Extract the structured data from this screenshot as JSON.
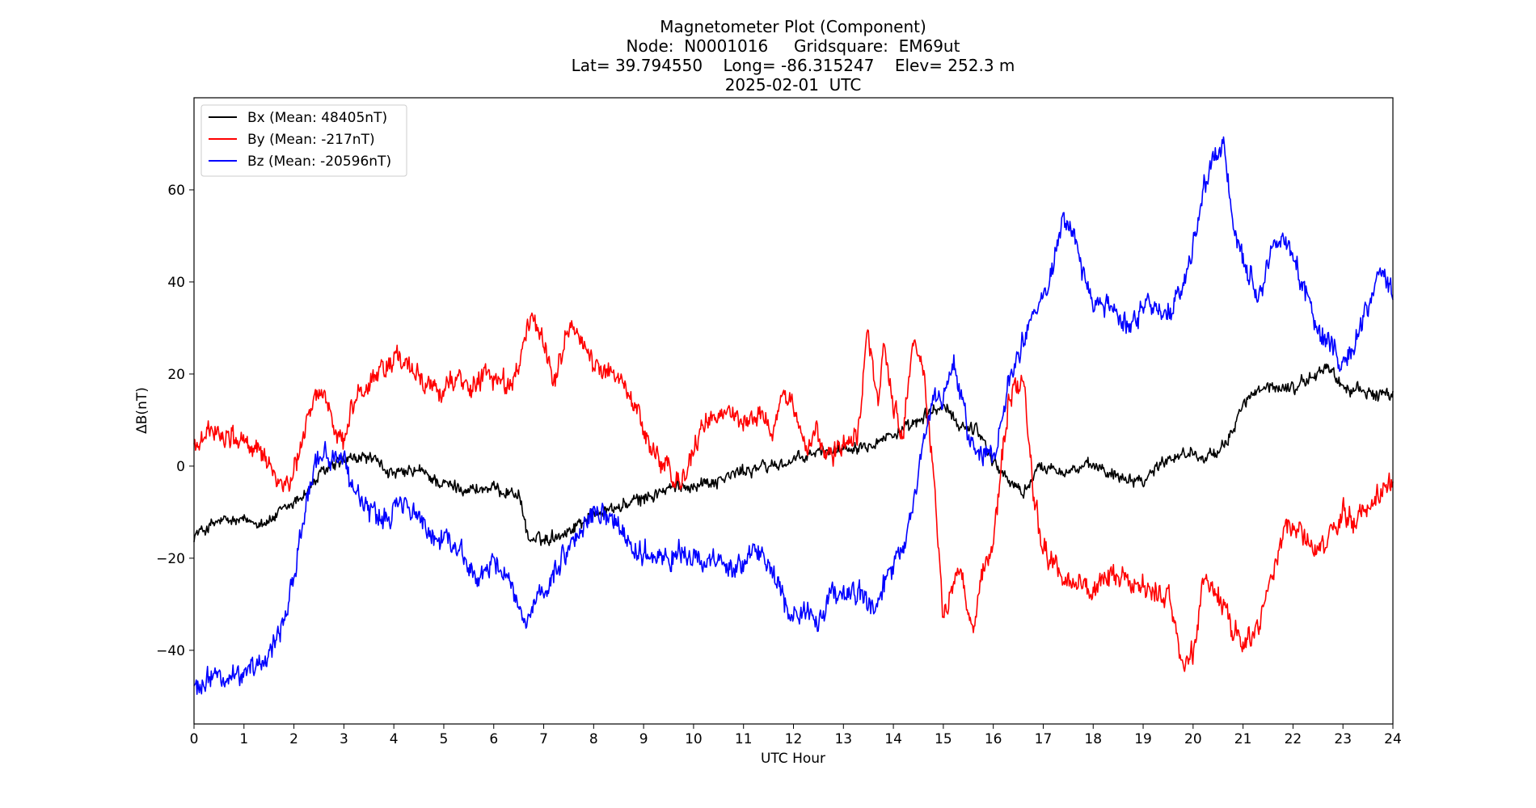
{
  "chart_data": {
    "type": "line",
    "title_lines": [
      "Magnetometer Plot (Component)",
      "Node:  N0001016     Gridsquare:  EM69ut",
      "Lat= 39.794550    Long= -86.315247    Elev= 252.3 m",
      "2025-02-01  UTC"
    ],
    "xlabel": "UTC Hour",
    "ylabel": "ΔB(nT)",
    "xlim": [
      0,
      24
    ],
    "ylim": [
      -56,
      80
    ],
    "xticks": [
      0,
      1,
      2,
      3,
      4,
      5,
      6,
      7,
      8,
      9,
      10,
      11,
      12,
      13,
      14,
      15,
      16,
      17,
      18,
      19,
      20,
      21,
      22,
      23,
      24
    ],
    "yticks": [
      -40,
      -20,
      0,
      20,
      40,
      60
    ],
    "ytick_labels": [
      "−40",
      "−20",
      "0",
      "20",
      "40",
      "60"
    ],
    "legend_position": "top-left",
    "series": [
      {
        "name": "Bx (Mean: 48405nT)",
        "color": "#000000",
        "noise": 1.2,
        "points": [
          [
            0,
            -15
          ],
          [
            0.5,
            -12
          ],
          [
            1,
            -12
          ],
          [
            1.5,
            -12
          ],
          [
            2,
            -8
          ],
          [
            2.3,
            -5
          ],
          [
            2.6,
            -1
          ],
          [
            3,
            1
          ],
          [
            3.5,
            2
          ],
          [
            4,
            -2
          ],
          [
            4.5,
            -1
          ],
          [
            5,
            -4
          ],
          [
            5.5,
            -5
          ],
          [
            6,
            -5
          ],
          [
            6.5,
            -6
          ],
          [
            6.7,
            -16
          ],
          [
            7,
            -16
          ],
          [
            7.5,
            -14
          ],
          [
            8,
            -10
          ],
          [
            8.5,
            -9
          ],
          [
            9,
            -7
          ],
          [
            9.5,
            -5
          ],
          [
            10,
            -4
          ],
          [
            10.5,
            -3
          ],
          [
            11,
            -1
          ],
          [
            11.5,
            0
          ],
          [
            12,
            1
          ],
          [
            12.5,
            3
          ],
          [
            13,
            4
          ],
          [
            13.5,
            5
          ],
          [
            14,
            7
          ],
          [
            14.3,
            8
          ],
          [
            14.8,
            12
          ],
          [
            15,
            13
          ],
          [
            15.3,
            9
          ],
          [
            15.7,
            8
          ],
          [
            16,
            1
          ],
          [
            16.3,
            -3
          ],
          [
            16.6,
            -6
          ],
          [
            16.8,
            -2
          ],
          [
            17,
            0
          ],
          [
            17.5,
            -1
          ],
          [
            18,
            0
          ],
          [
            18.5,
            -2
          ],
          [
            19,
            -3
          ],
          [
            19.5,
            2
          ],
          [
            20,
            3
          ],
          [
            20.5,
            2
          ],
          [
            20.8,
            8
          ],
          [
            21,
            14
          ],
          [
            21.5,
            17
          ],
          [
            22,
            17
          ],
          [
            22.5,
            20
          ],
          [
            22.7,
            22
          ],
          [
            23,
            17
          ],
          [
            23.5,
            16
          ],
          [
            24,
            15
          ]
        ]
      },
      {
        "name": "By (Mean: -217nT)",
        "color": "#ff0000",
        "noise": 2.2,
        "points": [
          [
            0,
            4
          ],
          [
            0.3,
            8
          ],
          [
            0.7,
            7
          ],
          [
            1,
            5
          ],
          [
            1.5,
            1
          ],
          [
            1.9,
            -6
          ],
          [
            2.1,
            3
          ],
          [
            2.4,
            15
          ],
          [
            2.6,
            16
          ],
          [
            2.8,
            10
          ],
          [
            3,
            5
          ],
          [
            3.2,
            14
          ],
          [
            3.5,
            18
          ],
          [
            4,
            24
          ],
          [
            4.3,
            21
          ],
          [
            4.6,
            18
          ],
          [
            5,
            17
          ],
          [
            5.2,
            19
          ],
          [
            5.5,
            17
          ],
          [
            5.8,
            20
          ],
          [
            6,
            19
          ],
          [
            6.3,
            17
          ],
          [
            6.5,
            22
          ],
          [
            6.7,
            31
          ],
          [
            7,
            28
          ],
          [
            7.2,
            18
          ],
          [
            7.5,
            31
          ],
          [
            7.8,
            27
          ],
          [
            8,
            21
          ],
          [
            8.4,
            21
          ],
          [
            8.8,
            14
          ],
          [
            9.1,
            5
          ],
          [
            9.4,
            0
          ],
          [
            9.7,
            -4
          ],
          [
            10,
            3
          ],
          [
            10.3,
            10
          ],
          [
            10.7,
            12
          ],
          [
            11,
            9
          ],
          [
            11.3,
            12
          ],
          [
            11.6,
            7
          ],
          [
            11.8,
            17
          ],
          [
            12,
            13
          ],
          [
            12.2,
            4
          ],
          [
            12.5,
            7
          ],
          [
            12.8,
            2
          ],
          [
            13,
            5
          ],
          [
            13.3,
            9
          ],
          [
            13.5,
            30
          ],
          [
            13.7,
            12
          ],
          [
            13.8,
            27
          ],
          [
            14,
            13
          ],
          [
            14.2,
            8
          ],
          [
            14.4,
            27
          ],
          [
            14.6,
            22
          ],
          [
            14.8,
            -2
          ],
          [
            15,
            -33
          ],
          [
            15.3,
            -22
          ],
          [
            15.6,
            -35
          ],
          [
            15.8,
            -22
          ],
          [
            16,
            -18
          ],
          [
            16.3,
            14
          ],
          [
            16.6,
            19
          ],
          [
            16.8,
            -5
          ],
          [
            17,
            -18
          ],
          [
            17.5,
            -25
          ],
          [
            18,
            -27
          ],
          [
            18.5,
            -24
          ],
          [
            19,
            -27
          ],
          [
            19.5,
            -28
          ],
          [
            19.8,
            -44
          ],
          [
            20,
            -40
          ],
          [
            20.2,
            -25
          ],
          [
            20.5,
            -28
          ],
          [
            20.7,
            -33
          ],
          [
            21,
            -39
          ],
          [
            21.3,
            -35
          ],
          [
            21.6,
            -22
          ],
          [
            21.9,
            -12
          ],
          [
            22.2,
            -15
          ],
          [
            22.5,
            -19
          ],
          [
            22.8,
            -15
          ],
          [
            23,
            -10
          ],
          [
            23.3,
            -12
          ],
          [
            23.6,
            -7
          ],
          [
            24,
            -3
          ]
        ]
      },
      {
        "name": "Bz (Mean: -20596nT)",
        "color": "#0000ff",
        "noise": 2.2,
        "points": [
          [
            0,
            -48
          ],
          [
            0.5,
            -45
          ],
          [
            1,
            -46
          ],
          [
            1.5,
            -40
          ],
          [
            1.8,
            -33
          ],
          [
            2,
            -24
          ],
          [
            2.2,
            -10
          ],
          [
            2.4,
            0
          ],
          [
            2.6,
            3
          ],
          [
            3,
            1
          ],
          [
            3.2,
            -5
          ],
          [
            3.5,
            -10
          ],
          [
            3.8,
            -11
          ],
          [
            4.2,
            -8
          ],
          [
            4.6,
            -13
          ],
          [
            5,
            -16
          ],
          [
            5.3,
            -17
          ],
          [
            5.7,
            -25
          ],
          [
            6,
            -21
          ],
          [
            6.3,
            -23
          ],
          [
            6.6,
            -35
          ],
          [
            6.8,
            -32
          ],
          [
            7,
            -28
          ],
          [
            7.3,
            -22
          ],
          [
            7.6,
            -16
          ],
          [
            8,
            -10
          ],
          [
            8.4,
            -12
          ],
          [
            8.8,
            -18
          ],
          [
            9.2,
            -20
          ],
          [
            9.6,
            -19
          ],
          [
            10,
            -20
          ],
          [
            10.5,
            -21
          ],
          [
            11,
            -22
          ],
          [
            11.3,
            -18
          ],
          [
            11.6,
            -23
          ],
          [
            11.9,
            -33
          ],
          [
            12.2,
            -31
          ],
          [
            12.5,
            -34
          ],
          [
            12.8,
            -27
          ],
          [
            13.2,
            -27
          ],
          [
            13.6,
            -32
          ],
          [
            14,
            -22
          ],
          [
            14.3,
            -15
          ],
          [
            14.6,
            5
          ],
          [
            14.8,
            14
          ],
          [
            15,
            15
          ],
          [
            15.2,
            22
          ],
          [
            15.4,
            12
          ],
          [
            15.6,
            4
          ],
          [
            16,
            2
          ],
          [
            16.3,
            18
          ],
          [
            16.6,
            28
          ],
          [
            17,
            38
          ],
          [
            17.2,
            43
          ],
          [
            17.4,
            55
          ],
          [
            17.6,
            50
          ],
          [
            17.8,
            42
          ],
          [
            18,
            35
          ],
          [
            18.4,
            34
          ],
          [
            18.8,
            30
          ],
          [
            19.1,
            37
          ],
          [
            19.4,
            31
          ],
          [
            19.8,
            38
          ],
          [
            20,
            48
          ],
          [
            20.2,
            60
          ],
          [
            20.4,
            66
          ],
          [
            20.6,
            70
          ],
          [
            20.8,
            55
          ],
          [
            21,
            45
          ],
          [
            21.3,
            38
          ],
          [
            21.6,
            48
          ],
          [
            21.9,
            48
          ],
          [
            22.2,
            40
          ],
          [
            22.5,
            29
          ],
          [
            22.8,
            26
          ],
          [
            23,
            21
          ],
          [
            23.3,
            28
          ],
          [
            23.6,
            37
          ],
          [
            23.8,
            42
          ],
          [
            24,
            37
          ]
        ]
      }
    ]
  }
}
